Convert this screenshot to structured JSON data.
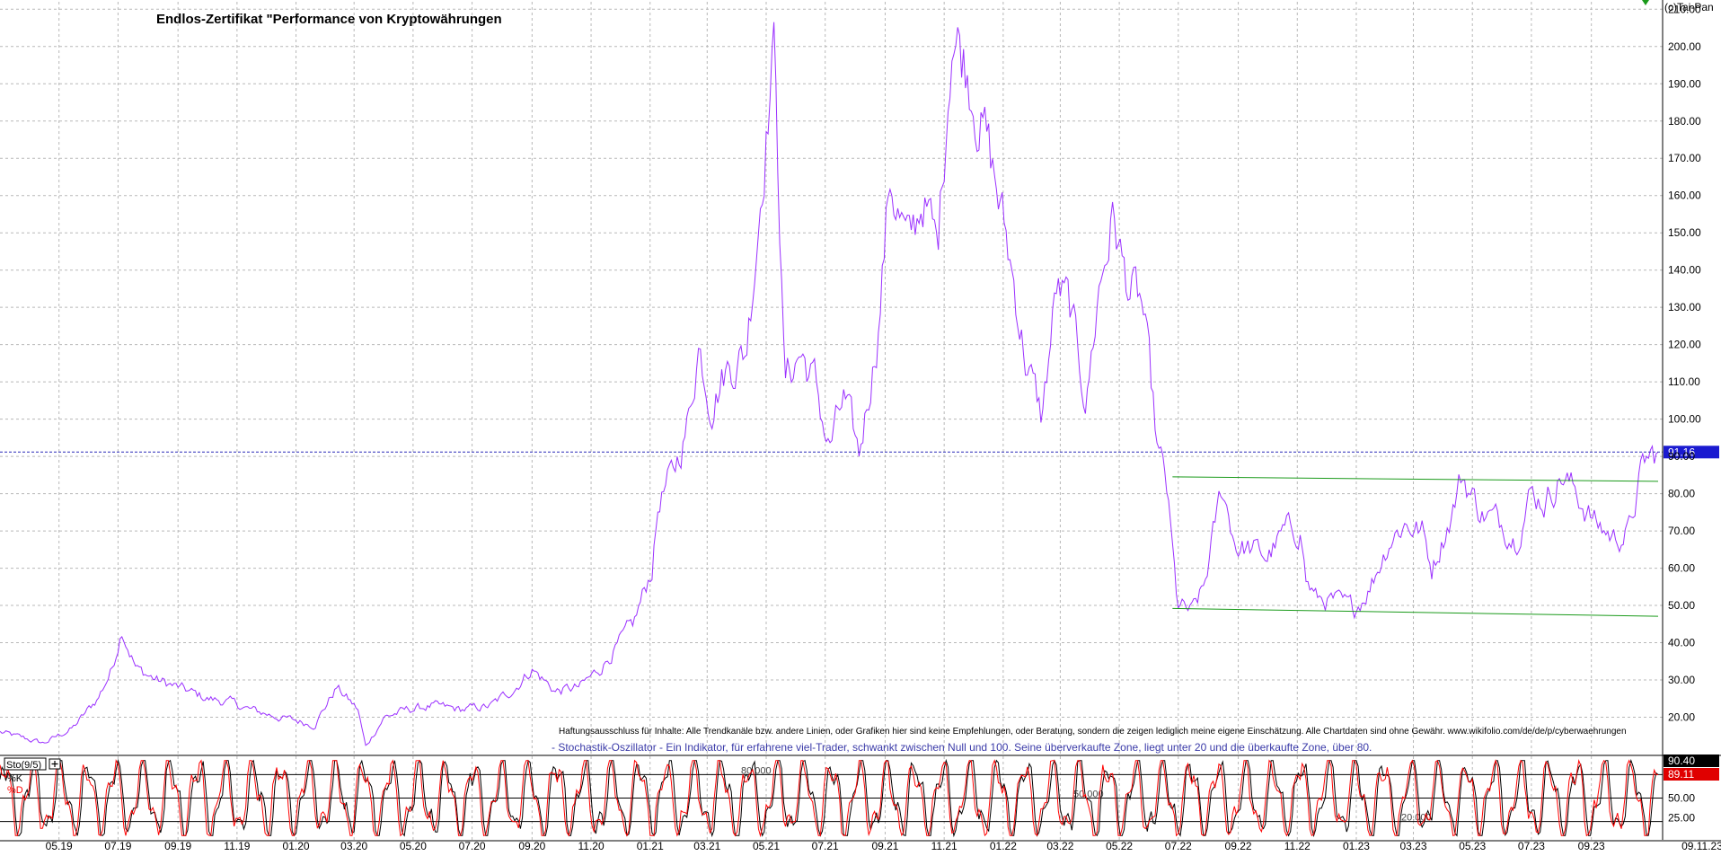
{
  "chart_data": [
    {
      "type": "line",
      "title": "Endlos-Zertifikat \"Performance von Kryptowährungen",
      "copyright": "(c)Tai-Pan",
      "ylim": [
        10,
        212
      ],
      "yticks": [
        20,
        30,
        40,
        50,
        60,
        70,
        80,
        90,
        100,
        110,
        120,
        130,
        140,
        150,
        160,
        170,
        180,
        190,
        200,
        210
      ],
      "ytick_labels": [
        "20.00",
        "30.00",
        "40.00",
        "50.00",
        "60.00",
        "70.00",
        "80.00",
        "90.00",
        "100.00",
        "110.00",
        "120.00",
        "130.00",
        "140.00",
        "150.00",
        "160.00",
        "170.00",
        "180.00",
        "190.00",
        "200.00",
        "210.00"
      ],
      "x_range": [
        "2019-03-01",
        "2023-11-09"
      ],
      "xticks": [
        "2019-05-01",
        "2019-07-01",
        "2019-09-01",
        "2019-11-01",
        "2020-01-01",
        "2020-03-01",
        "2020-05-01",
        "2020-07-01",
        "2020-09-01",
        "2020-11-01",
        "2021-01-01",
        "2021-03-01",
        "2021-05-01",
        "2021-07-01",
        "2021-09-01",
        "2021-11-01",
        "2022-01-01",
        "2022-03-01",
        "2022-05-01",
        "2022-07-01",
        "2022-09-01",
        "2022-11-01",
        "2023-01-01",
        "2023-03-01",
        "2023-05-01",
        "2023-07-01",
        "2023-09-01"
      ],
      "xtick_labels": [
        "05.19",
        "07.19",
        "09.19",
        "11.19",
        "01.20",
        "03.20",
        "05.20",
        "07.20",
        "09.20",
        "11.20",
        "01.21",
        "03.21",
        "05.21",
        "07.21",
        "09.21",
        "11.21",
        "01.22",
        "03.22",
        "05.22",
        "07.22",
        "09.22",
        "11.22",
        "01.23",
        "03.23",
        "05.23",
        "07.23",
        "09.23"
      ],
      "last_date_label": "09.11.23",
      "grid": true,
      "series": [
        {
          "color": "#9b30ff",
          "x": [
            "2019-03-01",
            "2019-04-15",
            "2019-05-15",
            "2019-06-10",
            "2019-06-25",
            "2019-07-05",
            "2019-07-20",
            "2019-08-10",
            "2019-09-01",
            "2019-10-01",
            "2019-10-25",
            "2019-11-15",
            "2019-12-15",
            "2020-01-20",
            "2020-02-12",
            "2020-03-05",
            "2020-03-13",
            "2020-04-01",
            "2020-04-25",
            "2020-05-20",
            "2020-06-20",
            "2020-07-20",
            "2020-08-15",
            "2020-09-01",
            "2020-09-25",
            "2020-10-20",
            "2020-11-10",
            "2020-11-25",
            "2020-12-15",
            "2021-01-03",
            "2021-01-10",
            "2021-01-25",
            "2021-02-10",
            "2021-02-20",
            "2021-03-05",
            "2021-03-20",
            "2021-04-10",
            "2021-04-20",
            "2021-05-05",
            "2021-05-10",
            "2021-05-20",
            "2021-06-05",
            "2021-06-20",
            "2021-07-05",
            "2021-07-20",
            "2021-08-05",
            "2021-08-25",
            "2021-09-06",
            "2021-09-25",
            "2021-10-10",
            "2021-10-25",
            "2021-11-09",
            "2021-11-25",
            "2021-12-10",
            "2021-12-25",
            "2022-01-10",
            "2022-01-25",
            "2022-02-10",
            "2022-02-25",
            "2022-03-10",
            "2022-03-28",
            "2022-04-10",
            "2022-04-25",
            "2022-05-05",
            "2022-05-12",
            "2022-05-25",
            "2022-06-10",
            "2022-06-18",
            "2022-06-30",
            "2022-07-15",
            "2022-07-28",
            "2022-08-15",
            "2022-08-30",
            "2022-09-15",
            "2022-10-01",
            "2022-10-20",
            "2022-11-05",
            "2022-11-10",
            "2022-11-20",
            "2022-12-10",
            "2022-12-30",
            "2023-01-15",
            "2023-02-05",
            "2023-02-20",
            "2023-03-10",
            "2023-03-20",
            "2023-04-10",
            "2023-04-20",
            "2023-05-10",
            "2023-06-01",
            "2023-06-15",
            "2023-06-30",
            "2023-07-15",
            "2023-08-01",
            "2023-08-17",
            "2023-09-05",
            "2023-09-25",
            "2023-10-10",
            "2023-10-25",
            "2023-11-09"
          ],
          "values": [
            16,
            13,
            17,
            25,
            33,
            44,
            33,
            30,
            28,
            25,
            24,
            22,
            20,
            18,
            28,
            22,
            12,
            20,
            22,
            23,
            22,
            23,
            28,
            33,
            27,
            28,
            33,
            38,
            45,
            60,
            78,
            85,
            100,
            120,
            105,
            113,
            118,
            145,
            190,
            200,
            110,
            118,
            110,
            92,
            105,
            90,
            125,
            165,
            145,
            160,
            145,
            205,
            195,
            180,
            162,
            140,
            115,
            100,
            135,
            130,
            105,
            135,
            155,
            140,
            135,
            130,
            90,
            84,
            50,
            48,
            55,
            82,
            66,
            65,
            63,
            70,
            70,
            57,
            52,
            51,
            49,
            55,
            68,
            72,
            70,
            60,
            75,
            85,
            75,
            72,
            68,
            80,
            78,
            85,
            80,
            72,
            68,
            70,
            88,
            91.16
          ]
        }
      ],
      "last_value_label": "91.16",
      "reference_line": 91.16,
      "trend_lines": [
        {
          "x": [
            "2022-06-25",
            "2023-11-09"
          ],
          "y": [
            84.5,
            83.3
          ]
        },
        {
          "x": [
            "2022-06-25",
            "2023-11-09"
          ],
          "y": [
            49.2,
            47.1
          ]
        }
      ],
      "annotations": [
        "Haftungsausschluss für Inhalte: Alle Trendkanäle bzw. andere Linien, oder Grafiken hier sind keine Empfehlungen, oder Beratung, sondern die zeigen lediglich meine eigene Einschätzung. Alle Chartdaten sind ohne Gewähr.  www.wikifolio.com/de/de/p/cyberwaehrungen",
        "- Stochastik-Oszillator - Ein Indikator, für erfahrene viel-Trader, schwankt zwischen Null und 100. Seine überverkaufte Zone, liegt unter 20 und die überkaufte Zone, über 80."
      ]
    },
    {
      "type": "line",
      "title": "Sto(9/5)",
      "ylim": [
        0,
        100
      ],
      "yticks": [
        25,
        50
      ],
      "ytick_labels": [
        "25.00",
        "50.00"
      ],
      "reference_lines": [
        20,
        50,
        80
      ],
      "reference_labels": [
        "20.000",
        "50.000",
        "80.000"
      ],
      "grid": true,
      "series": [
        {
          "name": "%K",
          "color": "#000000",
          "last_value_label": "90.40",
          "period_days": 28.5,
          "phase": 0.2
        },
        {
          "name": "%D",
          "color": "#ff0000",
          "last_value_label": "89.11",
          "period_days": 28.5,
          "phase": 0.6
        }
      ]
    }
  ]
}
